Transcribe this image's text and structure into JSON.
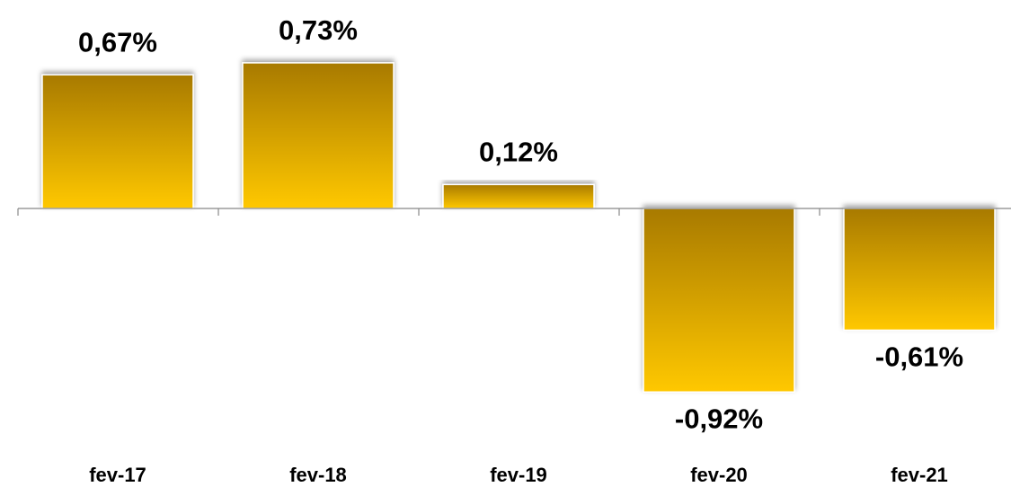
{
  "chart_data": {
    "type": "bar",
    "categories": [
      "fev-17",
      "fev-18",
      "fev-19",
      "fev-20",
      "fev-21"
    ],
    "values": [
      0.67,
      0.73,
      0.12,
      -0.92,
      -0.61
    ],
    "value_labels": [
      "0,67%",
      "0,73%",
      "0,12%",
      "-0,92%",
      "-0,61%"
    ],
    "color": "#ffc800"
  }
}
